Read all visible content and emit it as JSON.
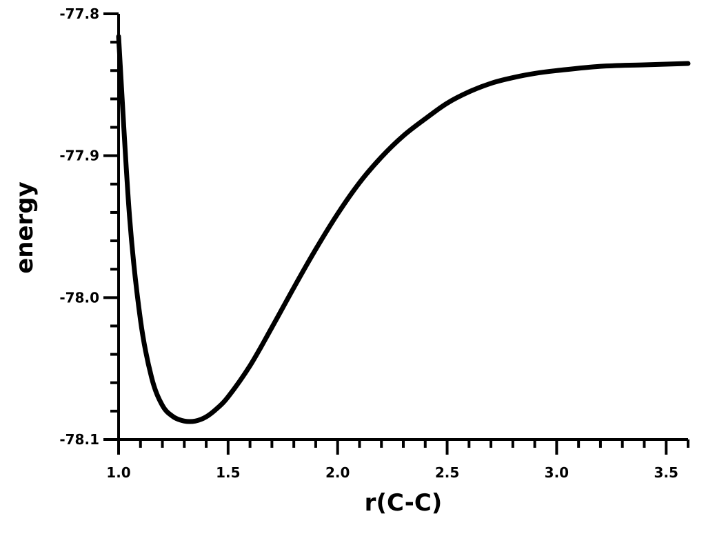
{
  "chart_data": {
    "type": "line",
    "title": "",
    "xlabel": "r(C-C)",
    "ylabel": "energy",
    "xlim": [
      1.0,
      3.6
    ],
    "ylim": [
      -78.1,
      -77.8
    ],
    "x_ticks": [
      "1.0",
      "1.5",
      "2.0",
      "2.5",
      "3.0",
      "3.5"
    ],
    "y_ticks": [
      "-77.8",
      "-77.9",
      "-78.0",
      "-78.1"
    ],
    "x_minor_step": 0.1,
    "y_minor_step": 0.02,
    "grid": false,
    "legend": "none",
    "series": [
      {
        "color": "#000000",
        "x": [
          1.0,
          1.05,
          1.1,
          1.15,
          1.2,
          1.25,
          1.3,
          1.35,
          1.4,
          1.45,
          1.5,
          1.6,
          1.7,
          1.8,
          1.9,
          2.0,
          2.1,
          2.2,
          2.3,
          2.4,
          2.5,
          2.6,
          2.7,
          2.8,
          2.9,
          3.0,
          3.2,
          3.4,
          3.6
        ],
        "y": [
          -77.816,
          -77.943,
          -78.016,
          -78.056,
          -78.076,
          -78.084,
          -78.087,
          -78.087,
          -78.084,
          -78.078,
          -78.07,
          -78.048,
          -78.021,
          -77.993,
          -77.966,
          -77.941,
          -77.919,
          -77.901,
          -77.886,
          -77.874,
          -77.863,
          -77.855,
          -77.849,
          -77.845,
          -77.842,
          -77.84,
          -77.837,
          -77.836,
          -77.835
        ]
      }
    ]
  }
}
